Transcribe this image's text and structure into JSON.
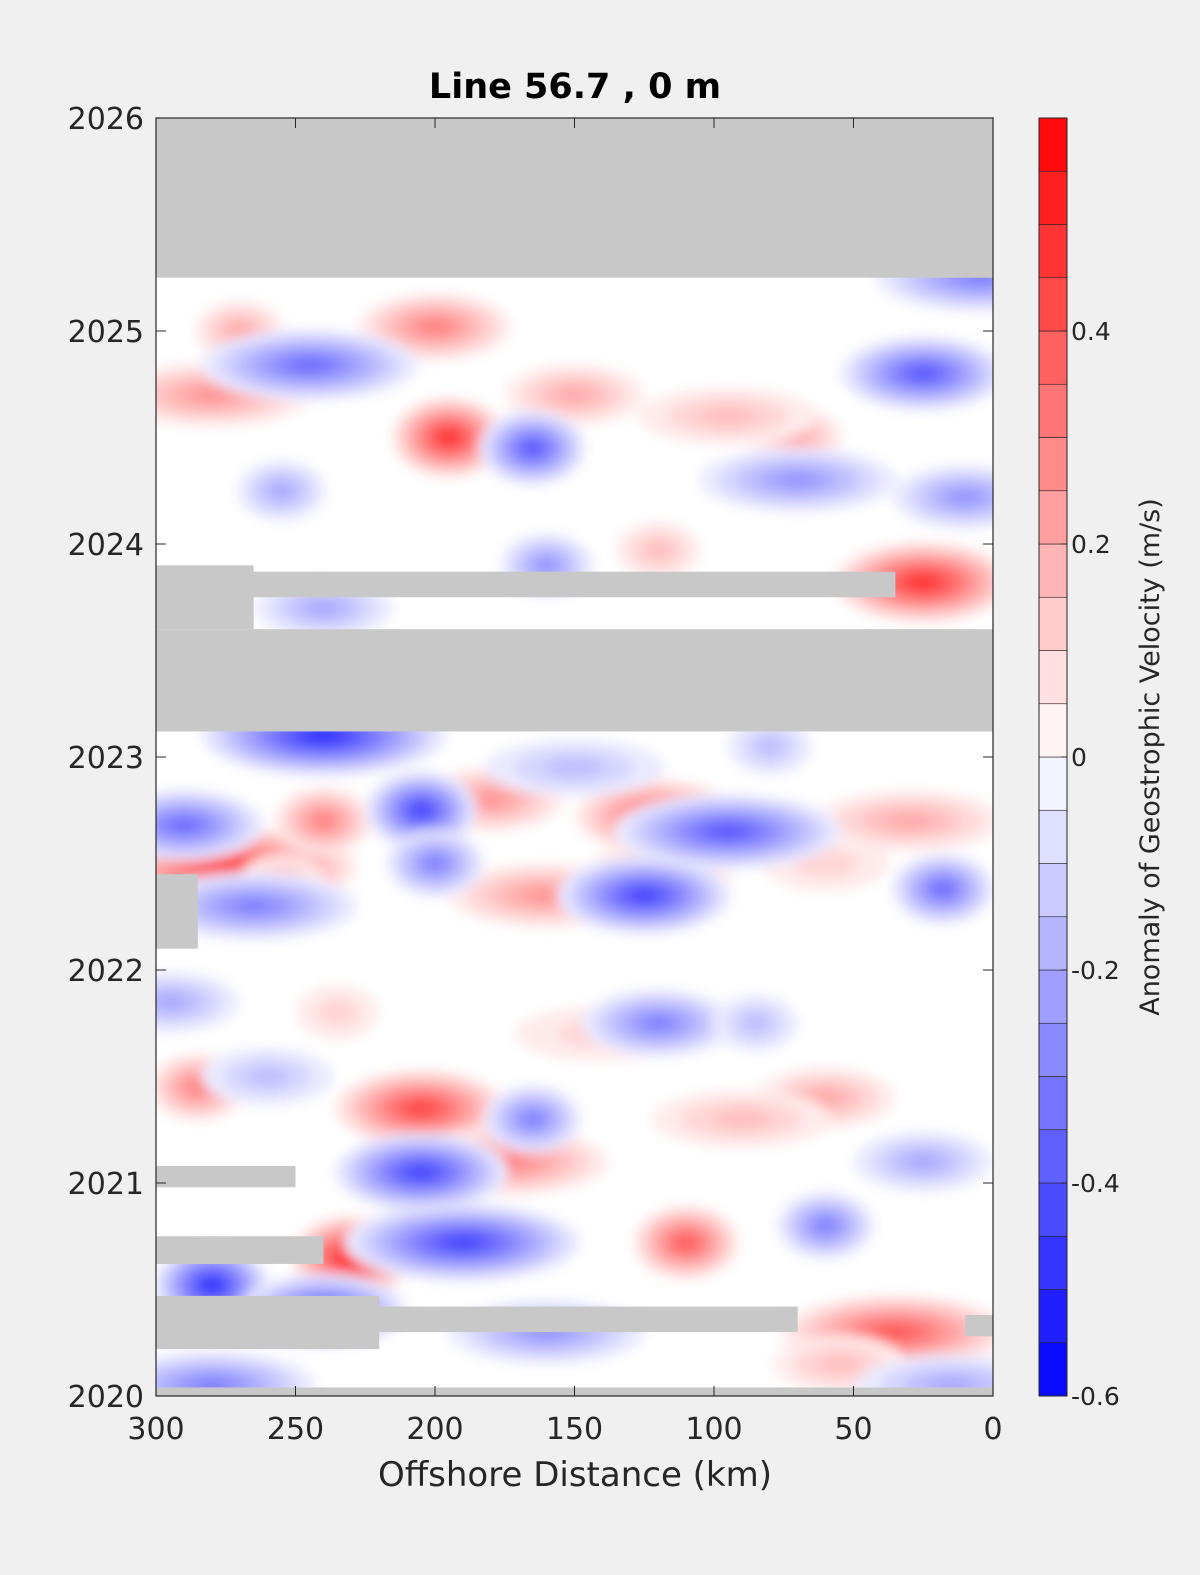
{
  "chart_data": {
    "type": "heatmap",
    "title": "Line 56.7 , 0 m",
    "xlabel": "Offshore Distance (km)",
    "ylabel": "",
    "x_range": [
      300,
      0
    ],
    "x_reversed": true,
    "y_range": [
      2020,
      2026
    ],
    "x_ticks": [
      300,
      250,
      200,
      150,
      100,
      50,
      0
    ],
    "y_ticks": [
      2020,
      2021,
      2022,
      2023,
      2024,
      2025,
      2026
    ],
    "grid": false,
    "missing_color": "#c8c8c8",
    "colorbar": {
      "label": "Anomaly of Geostrophic Velocity (m/s)",
      "range": [
        -0.6,
        0.6
      ],
      "step": 0.05,
      "ticks": [
        {
          "value": -0.6,
          "label": "-0.6"
        },
        {
          "value": -0.4,
          "label": "-0.4"
        },
        {
          "value": -0.2,
          "label": "-0.2"
        },
        {
          "value": 0,
          "label": "0"
        },
        {
          "value": 0.2,
          "label": "0.2"
        },
        {
          "value": 0.4,
          "label": "0.4"
        }
      ],
      "colors": {
        "negative": "#0000ff",
        "zero": "#ffffff",
        "positive": "#ff0000"
      }
    },
    "missing_bands": [
      {
        "y0": 2025.25,
        "y1": 2026.0,
        "x_from": 300,
        "x_to": 0
      },
      {
        "y0": 2023.12,
        "y1": 2023.6,
        "x_from": 300,
        "x_to": 0
      },
      {
        "y0": 2023.6,
        "y1": 2023.9,
        "x_from": 300,
        "x_to": 265
      },
      {
        "y0": 2023.75,
        "y1": 2023.87,
        "x_from": 300,
        "x_to": 35
      },
      {
        "y0": 2022.1,
        "y1": 2022.45,
        "x_from": 300,
        "x_to": 285
      },
      {
        "y0": 2020.98,
        "y1": 2021.08,
        "x_from": 300,
        "x_to": 250
      },
      {
        "y0": 2020.62,
        "y1": 2020.75,
        "x_from": 300,
        "x_to": 240
      },
      {
        "y0": 2020.22,
        "y1": 2020.47,
        "x_from": 300,
        "x_to": 220
      },
      {
        "y0": 2020.3,
        "y1": 2020.42,
        "x_from": 300,
        "x_to": 70
      },
      {
        "y0": 2020.28,
        "y1": 2020.38,
        "x_from": 10,
        "x_to": 0
      },
      {
        "y0": 2020.0,
        "y1": 2020.04,
        "x_from": 300,
        "x_to": 0
      }
    ],
    "anomalies": [
      {
        "x": 195,
        "y": 2024.5,
        "value": 0.5
      },
      {
        "x": 25,
        "y": 2023.82,
        "value": 0.5
      },
      {
        "x": 272,
        "y": 2022.48,
        "value": 0.5
      },
      {
        "x": 230,
        "y": 2020.65,
        "value": 0.55
      },
      {
        "x": 205,
        "y": 2021.35,
        "value": 0.45
      },
      {
        "x": 35,
        "y": 2020.3,
        "value": 0.4
      },
      {
        "x": 110,
        "y": 2020.72,
        "value": 0.4
      },
      {
        "x": 120,
        "y": 2022.72,
        "value": 0.4
      },
      {
        "x": 175,
        "y": 2021.1,
        "value": 0.3
      },
      {
        "x": 240,
        "y": 2022.7,
        "value": 0.3
      },
      {
        "x": 180,
        "y": 2022.8,
        "value": 0.25
      },
      {
        "x": 160,
        "y": 2022.35,
        "value": 0.25
      },
      {
        "x": 70,
        "y": 2024.5,
        "value": 0.2
      },
      {
        "x": 150,
        "y": 2024.7,
        "value": 0.2
      },
      {
        "x": 280,
        "y": 2024.7,
        "value": 0.25
      },
      {
        "x": 270,
        "y": 2025.0,
        "value": 0.2
      },
      {
        "x": 200,
        "y": 2025.02,
        "value": 0.3
      },
      {
        "x": 95,
        "y": 2024.6,
        "value": 0.15
      },
      {
        "x": 255,
        "y": 2022.4,
        "value": 0.2
      },
      {
        "x": 60,
        "y": 2021.4,
        "value": 0.2
      },
      {
        "x": 90,
        "y": 2021.3,
        "value": 0.15
      },
      {
        "x": 285,
        "y": 2021.45,
        "value": 0.3
      },
      {
        "x": 120,
        "y": 2022.45,
        "value": 0.25
      },
      {
        "x": 30,
        "y": 2022.7,
        "value": 0.2
      },
      {
        "x": 120,
        "y": 2023.97,
        "value": 0.15
      },
      {
        "x": 55,
        "y": 2020.15,
        "value": 0.15
      },
      {
        "x": 140,
        "y": 2021.7,
        "value": 0.12
      },
      {
        "x": 235,
        "y": 2021.8,
        "value": 0.12
      },
      {
        "x": 60,
        "y": 2022.5,
        "value": 0.12
      },
      {
        "x": 245,
        "y": 2024.84,
        "value": -0.35
      },
      {
        "x": 165,
        "y": 2024.45,
        "value": -0.4
      },
      {
        "x": 25,
        "y": 2024.8,
        "value": -0.4
      },
      {
        "x": 240,
        "y": 2023.1,
        "value": -0.5
      },
      {
        "x": 205,
        "y": 2022.75,
        "value": -0.45
      },
      {
        "x": 125,
        "y": 2022.35,
        "value": -0.45
      },
      {
        "x": 95,
        "y": 2022.65,
        "value": -0.4
      },
      {
        "x": 18,
        "y": 2022.38,
        "value": -0.35
      },
      {
        "x": 290,
        "y": 2022.68,
        "value": -0.35
      },
      {
        "x": 265,
        "y": 2022.3,
        "value": -0.3
      },
      {
        "x": 200,
        "y": 2022.5,
        "value": -0.3
      },
      {
        "x": 205,
        "y": 2021.05,
        "value": -0.45
      },
      {
        "x": 190,
        "y": 2020.72,
        "value": -0.45
      },
      {
        "x": 280,
        "y": 2020.52,
        "value": -0.5
      },
      {
        "x": 240,
        "y": 2020.4,
        "value": -0.4
      },
      {
        "x": 280,
        "y": 2020.05,
        "value": -0.3
      },
      {
        "x": 165,
        "y": 2021.3,
        "value": -0.3
      },
      {
        "x": 120,
        "y": 2021.75,
        "value": -0.3
      },
      {
        "x": 160,
        "y": 2020.3,
        "value": -0.25
      },
      {
        "x": 60,
        "y": 2020.8,
        "value": -0.3
      },
      {
        "x": 10,
        "y": 2024.22,
        "value": -0.25
      },
      {
        "x": 70,
        "y": 2024.3,
        "value": -0.25
      },
      {
        "x": 160,
        "y": 2023.9,
        "value": -0.25
      },
      {
        "x": 240,
        "y": 2023.7,
        "value": -0.2
      },
      {
        "x": 5,
        "y": 2025.25,
        "value": -0.3
      },
      {
        "x": 255,
        "y": 2024.25,
        "value": -0.2
      },
      {
        "x": 25,
        "y": 2021.1,
        "value": -0.2
      },
      {
        "x": 15,
        "y": 2020.05,
        "value": -0.2
      },
      {
        "x": 85,
        "y": 2021.75,
        "value": -0.15
      },
      {
        "x": 260,
        "y": 2021.5,
        "value": -0.15
      },
      {
        "x": 150,
        "y": 2022.95,
        "value": -0.15
      },
      {
        "x": 80,
        "y": 2023.05,
        "value": -0.15
      },
      {
        "x": 295,
        "y": 2021.85,
        "value": -0.2
      }
    ]
  }
}
